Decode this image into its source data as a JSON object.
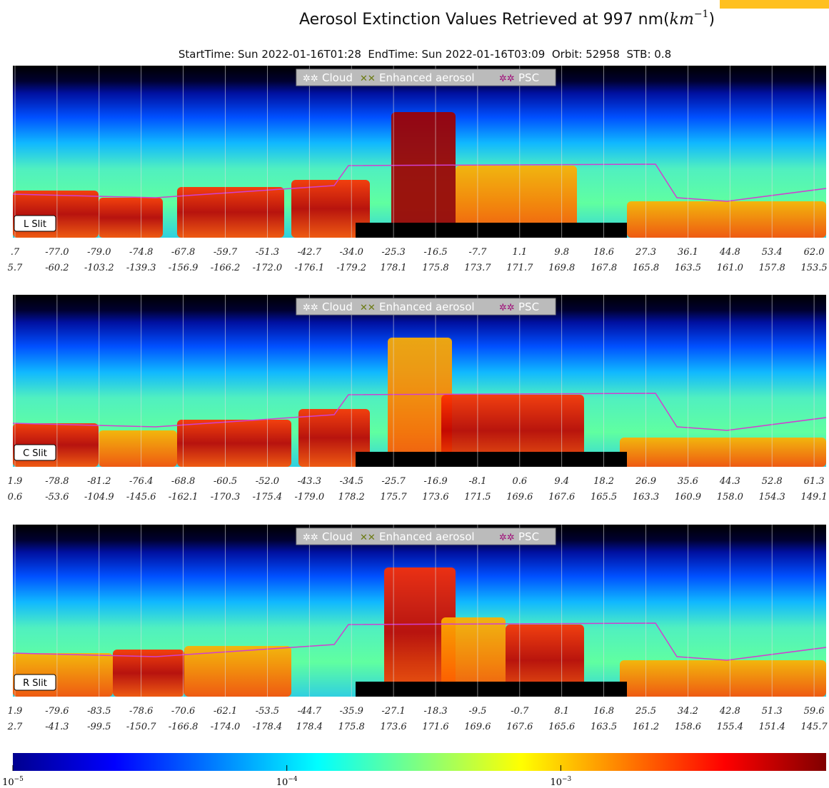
{
  "header": {
    "title_parts": [
      "Aerosol Extinction Values Retrieved at 997 nm(",
      "km",
      "−1",
      ")"
    ],
    "subtitle": "StartTime: Sun 2022-01-16T01:28  EndTime: Sun 2022-01-16T03:09  Orbit: 52958  STB: 0.8"
  },
  "panels": [
    {
      "slit": "L Slit",
      "legend": [
        "Cloud",
        "Enhanced aerosol",
        "PSC"
      ],
      "row1": [
        ".7",
        "-77.0",
        "-79.0",
        "-74.8",
        "-67.8",
        "-59.7",
        "-51.3",
        "-42.7",
        "-34.0",
        "-25.3",
        "-16.5",
        "-7.7",
        "1.1",
        "9.8",
        "18.6",
        "27.3",
        "36.1",
        "44.8",
        "53.4",
        "62.0"
      ],
      "row2": [
        "5.7",
        "-60.2",
        "-103.2",
        "-139.3",
        "-156.9",
        "-166.2",
        "-172.0",
        "-176.1",
        "-179.2",
        "178.1",
        "175.8",
        "173.7",
        "171.7",
        "169.8",
        "167.8",
        "165.8",
        "163.5",
        "161.0",
        "157.8",
        "153.5"
      ]
    },
    {
      "slit": "C Slit",
      "legend": [
        "Cloud",
        "Enhanced aerosol",
        "PSC"
      ],
      "row1": [
        "1.9",
        "-78.8",
        "-81.2",
        "-76.4",
        "-68.8",
        "-60.5",
        "-52.0",
        "-43.3",
        "-34.5",
        "-25.7",
        "-16.9",
        "-8.1",
        "0.6",
        "9.4",
        "18.2",
        "26.9",
        "35.6",
        "44.3",
        "52.8",
        "61.3"
      ],
      "row2": [
        "0.6",
        "-53.6",
        "-104.9",
        "-145.6",
        "-162.1",
        "-170.3",
        "-175.4",
        "-179.0",
        "178.2",
        "175.7",
        "173.6",
        "171.5",
        "169.6",
        "167.6",
        "165.5",
        "163.3",
        "160.9",
        "158.0",
        "154.3",
        "149.1"
      ]
    },
    {
      "slit": "R Slit",
      "legend": [
        "Cloud",
        "Enhanced aerosol",
        "PSC"
      ],
      "row1": [
        "1.9",
        "-79.6",
        "-83.5",
        "-78.6",
        "-70.6",
        "-62.1",
        "-53.5",
        "-44.7",
        "-35.9",
        "-27.1",
        "-18.3",
        "-9.5",
        "-0.7",
        "8.1",
        "16.8",
        "25.5",
        "34.2",
        "42.8",
        "51.3",
        "59.6"
      ],
      "row2": [
        "2.7",
        "-41.3",
        "-99.5",
        "-150.7",
        "-166.8",
        "-174.0",
        "-178.4",
        "178.4",
        "175.8",
        "173.6",
        "171.6",
        "169.6",
        "167.6",
        "165.6",
        "163.5",
        "161.2",
        "158.6",
        "155.4",
        "151.4",
        "145.7"
      ]
    }
  ],
  "colorbar": {
    "log": true,
    "lim": [
      1e-05,
      0.0093
    ],
    "ticks": [
      {
        "value": 1e-05,
        "base": "10",
        "exp": "−5"
      },
      {
        "value": 0.0001,
        "base": "10",
        "exp": "−4"
      },
      {
        "value": 0.001,
        "base": "10",
        "exp": "−3"
      }
    ]
  }
}
